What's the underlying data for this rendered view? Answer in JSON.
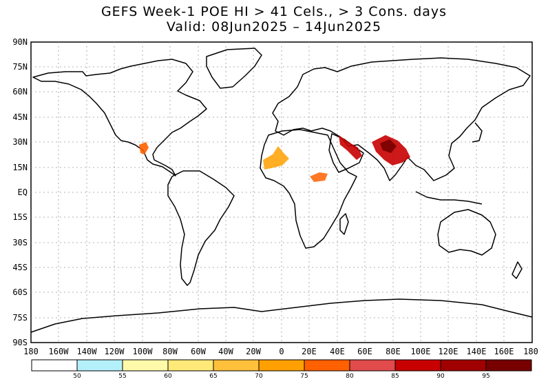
{
  "title_line1": "GEFS Week-1 POE HI > 41 Cels., > 3 Cons. days",
  "title_line2": "Valid: 08Jun2025 – 14Jun2025",
  "lat_labels": [
    "90N",
    "75N",
    "60N",
    "45N",
    "30N",
    "15N",
    "EQ",
    "15S",
    "30S",
    "45S",
    "60S",
    "75S",
    "90S"
  ],
  "lon_labels": [
    "180",
    "160W",
    "140W",
    "120W",
    "100W",
    "80W",
    "60W",
    "40W",
    "20W",
    "0",
    "20E",
    "40E",
    "60E",
    "80E",
    "100E",
    "120E",
    "140E",
    "160E",
    "180"
  ],
  "colorbar": {
    "ticks": [
      "50",
      "55",
      "60",
      "65",
      "70",
      "75",
      "80",
      "85",
      "90",
      "95"
    ],
    "colors": [
      "#ffffff",
      "#b4f0fa",
      "#fffaaa",
      "#ffe978",
      "#ffc13c",
      "#ffa000",
      "#ff6000",
      "#e14b4b",
      "#c80000",
      "#a00000",
      "#780000"
    ]
  },
  "heat_regions": [
    {
      "name": "mexico",
      "color": "#ff6000"
    },
    {
      "name": "sahel-west",
      "color": "#ffa000"
    },
    {
      "name": "sahel-east",
      "color": "#ff6000"
    },
    {
      "name": "arabia",
      "color": "#c80000"
    },
    {
      "name": "pakistan-india",
      "color": "#c80000"
    }
  ]
}
